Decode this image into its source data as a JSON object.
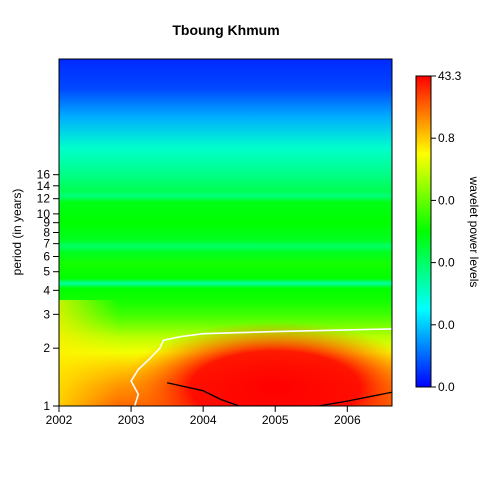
{
  "chart_data": {
    "type": "heatmap",
    "title": "Tboung Khmum",
    "xlabel": "",
    "ylabel": "period (in years)",
    "x_range": [
      2002.0,
      2006.62
    ],
    "x_ticks": [
      "2002",
      "2003",
      "2004",
      "2005",
      "2006"
    ],
    "y_scale": "log2",
    "y_range": [
      1,
      64
    ],
    "y_ticks": [
      "1",
      "2",
      "3",
      "4",
      "5",
      "6",
      "7",
      "8",
      "9",
      "10",
      "12",
      "14",
      "16"
    ],
    "colorbar": {
      "label": "wavelet power levels",
      "tick_labels": [
        "0.0",
        "0.0",
        "0.0",
        "0.0",
        "0.8",
        "43.3"
      ],
      "colors": [
        "#0000ff",
        "#00ffff",
        "#00ff00",
        "#ffff00",
        "#ff0000"
      ]
    },
    "power_bands": [
      {
        "period": 1.0,
        "level": 0.9
      },
      {
        "period": 1.1,
        "level": 0.88
      },
      {
        "period": 1.3,
        "level": 0.85
      },
      {
        "period": 1.6,
        "level": 0.8
      },
      {
        "period": 1.9,
        "level": 0.74
      },
      {
        "period": 2.3,
        "level": 0.68
      },
      {
        "period": 2.6,
        "level": 0.62
      },
      {
        "period": 3.0,
        "level": 0.56
      },
      {
        "period": 3.5,
        "level": 0.52
      },
      {
        "period": 4.1,
        "level": 0.5
      },
      {
        "period": 4.35,
        "level": 0.34
      },
      {
        "period": 4.6,
        "level": 0.5
      },
      {
        "period": 5.5,
        "level": 0.52
      },
      {
        "period": 6.3,
        "level": 0.47
      },
      {
        "period": 6.8,
        "level": 0.4
      },
      {
        "period": 7.3,
        "level": 0.47
      },
      {
        "period": 9.0,
        "level": 0.5
      },
      {
        "period": 11.5,
        "level": 0.48
      },
      {
        "period": 12.4,
        "level": 0.38
      },
      {
        "period": 13.2,
        "level": 0.42
      },
      {
        "period": 16.0,
        "level": 0.37
      },
      {
        "period": 22.0,
        "level": 0.3
      },
      {
        "period": 32.0,
        "level": 0.17
      },
      {
        "period": 45.0,
        "level": 0.07
      },
      {
        "period": 64.0,
        "level": 0.04
      }
    ],
    "hotspot": {
      "center_year": 2005.0,
      "center_period": 1.25,
      "peak_level": 1.0
    },
    "significance_contour": [
      [
        2003.05,
        1.0
      ],
      [
        2003.1,
        1.15
      ],
      [
        2003.0,
        1.35
      ],
      [
        2003.1,
        1.55
      ],
      [
        2003.25,
        1.75
      ],
      [
        2003.4,
        2.0
      ],
      [
        2003.45,
        2.2
      ],
      [
        2003.7,
        2.3
      ],
      [
        2004.0,
        2.38
      ],
      [
        2005.0,
        2.44
      ],
      [
        2006.0,
        2.49
      ],
      [
        2006.62,
        2.52
      ]
    ],
    "cone_of_influence": [
      [
        2003.5,
        1.32
      ],
      [
        2004.0,
        1.2
      ],
      [
        2004.25,
        1.08
      ],
      [
        2004.5,
        1.0
      ],
      [
        2005.6,
        1.0
      ],
      [
        2006.0,
        1.06
      ],
      [
        2006.62,
        1.18
      ]
    ]
  }
}
